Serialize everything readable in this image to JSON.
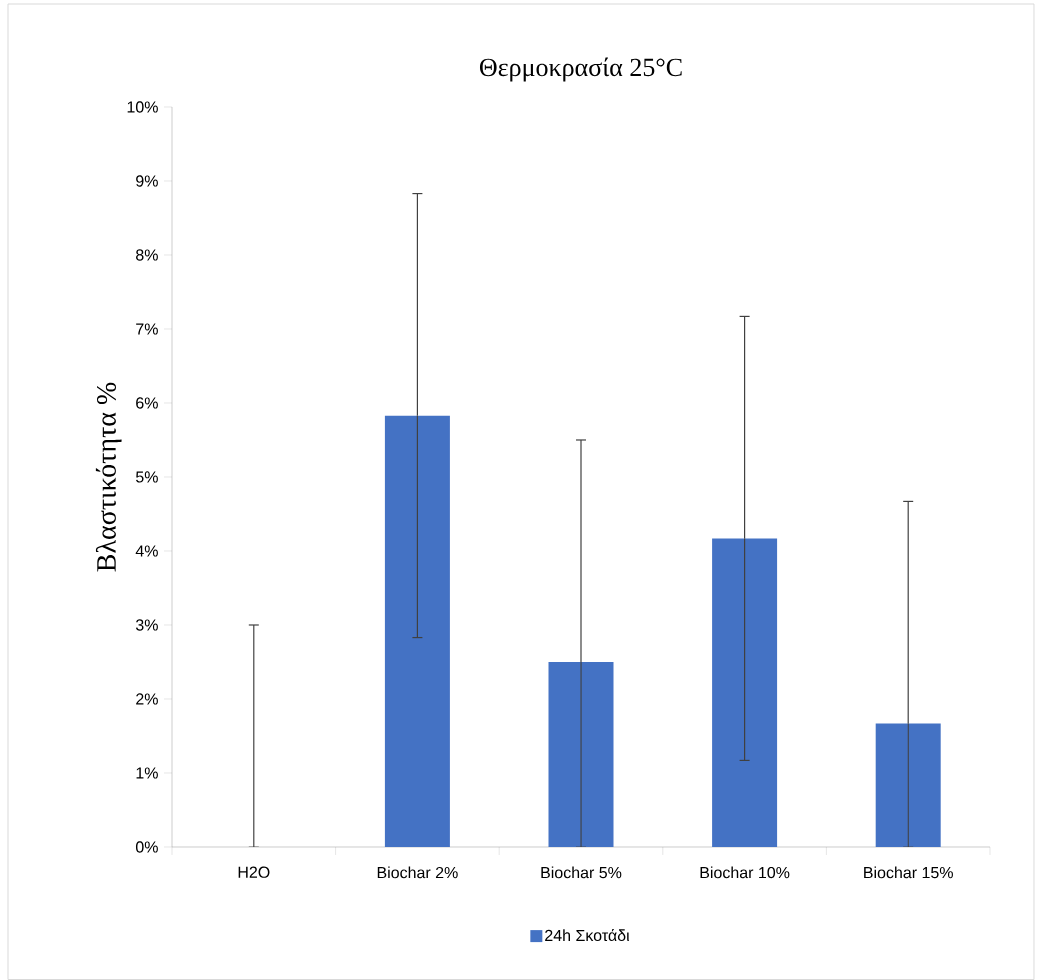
{
  "chart_data": {
    "type": "bar",
    "title": "Θερμοκρασία 25°C",
    "ylabel": "Βλαστικότητα %",
    "categories": [
      "H2O",
      "Biochar 2%",
      "Biochar 5%",
      "Biochar 10%",
      "Biochar 15%"
    ],
    "series": [
      {
        "name": "24h Σκοτάδι",
        "color": "#4472c4",
        "values": [
          0,
          5.83,
          2.5,
          4.17,
          1.67
        ],
        "errors": [
          [
            0,
            3
          ],
          3,
          [
            0,
            5.5
          ],
          3,
          [
            0,
            4.67
          ]
        ]
      }
    ],
    "ylim": [
      0,
      10
    ],
    "yticks": [
      {
        "value": 0,
        "label": "0%"
      },
      {
        "value": 1,
        "label": "1%"
      },
      {
        "value": 2,
        "label": "2%"
      },
      {
        "value": 3,
        "label": "3%"
      },
      {
        "value": 4,
        "label": "4%"
      },
      {
        "value": 5,
        "label": "5%"
      },
      {
        "value": 6,
        "label": "6%"
      },
      {
        "value": 7,
        "label": "7%"
      },
      {
        "value": 8,
        "label": "8%"
      },
      {
        "value": 9,
        "label": "9%"
      },
      {
        "value": 10,
        "label": "10%"
      }
    ],
    "legend": "bottom"
  }
}
